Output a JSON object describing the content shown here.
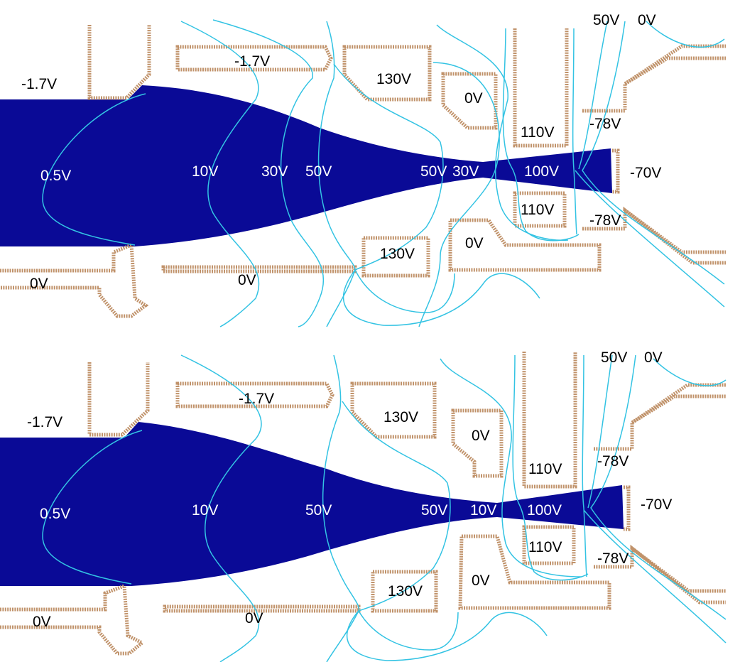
{
  "colors": {
    "beam": "#0a0a96",
    "electrode": "#c0926a",
    "equipotential": "#33c3e3",
    "background": "#ffffff",
    "label_on_beam": "#ffffff",
    "label_default": "#000000"
  },
  "panels": [
    {
      "id": "top",
      "labels": {
        "entrance_top": "-1.7V",
        "lens1_top": "-1.7V",
        "lens2_top": "130V",
        "lens3_top": "0V",
        "electrode_110_top": "110V",
        "right_top": "-78V",
        "far_right": "-70V",
        "top_50": "50V",
        "top_0": "0V",
        "electrode_110_bottom": "110V",
        "right_bottom": "-78V",
        "lens3_bottom": "0V",
        "lens2_bottom": "130V",
        "plate_bottom": "0V",
        "entrance_bottom": "0V",
        "eq_05": "0.5V",
        "eq_10": "10V",
        "eq_30": "30V",
        "eq_50": "50V",
        "eq_50b": "50V",
        "eq_30b": "30V",
        "eq_100": "100V"
      }
    },
    {
      "id": "bottom",
      "labels": {
        "entrance_top": "-1.7V",
        "lens1_top": "-1.7V",
        "lens2_top": "130V",
        "lens3_top": "0V",
        "electrode_110_top": "110V",
        "right_top": "-78V",
        "far_right": "-70V",
        "top_50": "50V",
        "top_0": "0V",
        "electrode_110_bottom": "110V",
        "right_bottom": "-78V",
        "lens3_bottom": "0V",
        "lens2_bottom": "130V",
        "plate_bottom": "0V",
        "entrance_bottom": "0V",
        "eq_05": "0.5V",
        "eq_10": "10V",
        "eq_50": "50V",
        "eq_50b": "50V",
        "eq_10b": "10V",
        "eq_100": "100V"
      }
    }
  ]
}
